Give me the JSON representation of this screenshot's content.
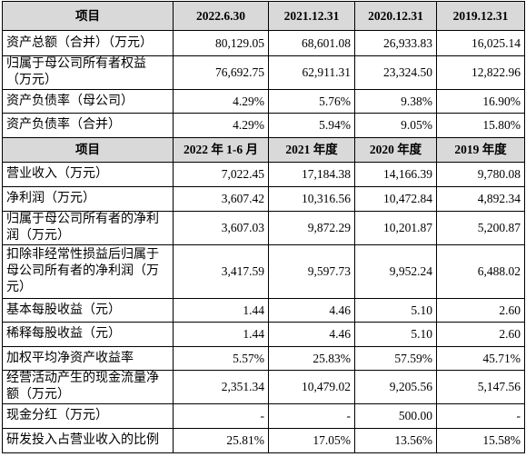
{
  "table": {
    "sections": [
      {
        "header": [
          "项目",
          "2022.6.30",
          "2021.12.31",
          "2020.12.31",
          "2019.12.31"
        ],
        "rows": [
          [
            "资产总额（合并）（万元）",
            "80,129.05",
            "68,601.08",
            "26,933.83",
            "16,025.14"
          ],
          [
            "归属于母公司所有者权益（万元）",
            "76,692.75",
            "62,911.31",
            "23,324.50",
            "12,822.96"
          ],
          [
            "资产负债率（母公司）",
            "4.29%",
            "5.76%",
            "9.38%",
            "16.90%"
          ],
          [
            "资产负债率（合并）",
            "4.29%",
            "5.94%",
            "9.05%",
            "15.80%"
          ]
        ]
      },
      {
        "header": [
          "项目",
          "2022 年 1-6 月",
          "2021 年度",
          "2020 年度",
          "2019 年度"
        ],
        "rows": [
          [
            "营业收入（万元）",
            "7,022.45",
            "17,184.38",
            "14,166.39",
            "9,780.08"
          ],
          [
            "净利润（万元）",
            "3,607.42",
            "10,316.56",
            "10,472.84",
            "4,892.34"
          ],
          [
            "归属于母公司所有者的净利润（万元）",
            "3,607.03",
            "9,872.29",
            "10,201.87",
            "5,200.87"
          ],
          [
            "扣除非经常性损益后归属于母公司所有者的净利润（万元）",
            "3,417.59",
            "9,597.73",
            "9,952.24",
            "6,488.02"
          ],
          [
            "基本每股收益（元）",
            "1.44",
            "4.46",
            "5.10",
            "2.60"
          ],
          [
            "稀释每股收益（元）",
            "1.44",
            "4.46",
            "5.10",
            "2.60"
          ],
          [
            "加权平均净资产收益率",
            "5.57%",
            "25.83%",
            "57.59%",
            "45.71%"
          ],
          [
            "经营活动产生的现金流量净额（万元）",
            "2,351.34",
            "10,479.02",
            "9,205.56",
            "5,147.56"
          ],
          [
            "现金分红（万元）",
            "-",
            "-",
            "500.00",
            "-"
          ],
          [
            "研发投入占营业收入的比例",
            "25.81%",
            "17.05%",
            "13.56%",
            "15.58%"
          ]
        ]
      }
    ]
  }
}
